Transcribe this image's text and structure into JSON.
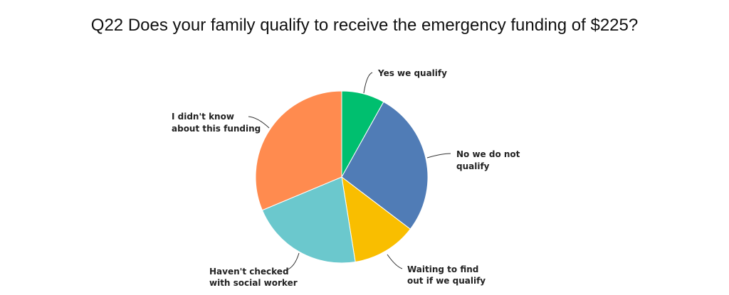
{
  "title": "Q22 Does your family qualify to receive the emergency funding of $225?",
  "chart_data": {
    "type": "pie",
    "title": "Q22 Does your family qualify to receive the emergency funding of $225?",
    "categories": [
      "Yes we qualify",
      "No we do not qualify",
      "Waiting to find out if we qualify",
      "Haven't checked with social worker",
      "I didn't know about this funding"
    ],
    "values": [
      8,
      27,
      12,
      21,
      31
    ],
    "colors": [
      "#00BF6F",
      "#507CB6",
      "#F9BE00",
      "#6BC8CD",
      "#FF8B4F"
    ],
    "start_angle": "12 o'clock, clockwise",
    "legend": "none (callout labels)"
  },
  "labels": {
    "yes": [
      "Yes we qualify"
    ],
    "no": [
      "No we do not",
      "qualify"
    ],
    "waiting": [
      "Waiting to find",
      "out if we qualify"
    ],
    "havent": [
      "Haven't checked",
      "with social worker"
    ],
    "didnt": [
      "I didn't know",
      "about this funding"
    ]
  }
}
